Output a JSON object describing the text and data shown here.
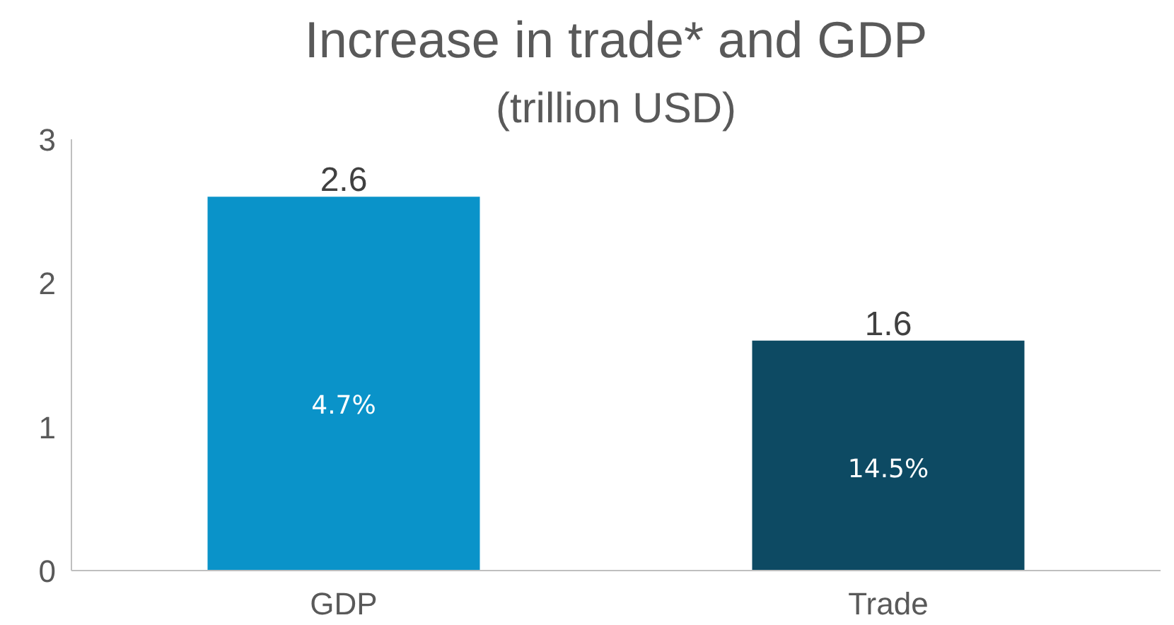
{
  "chart_data": {
    "type": "bar",
    "title": "Increase in trade* and GDP",
    "subtitle": "(trillion USD)",
    "categories": [
      "GDP",
      "Trade"
    ],
    "values": [
      2.6,
      1.6
    ],
    "colors": [
      "#0a93c9",
      "#0d4a63"
    ],
    "ylim": [
      0,
      3
    ],
    "yticks": [
      0,
      1,
      2,
      3
    ],
    "grid": false,
    "data_labels": true,
    "annotations": [
      "4.7%",
      "14.5%"
    ]
  }
}
